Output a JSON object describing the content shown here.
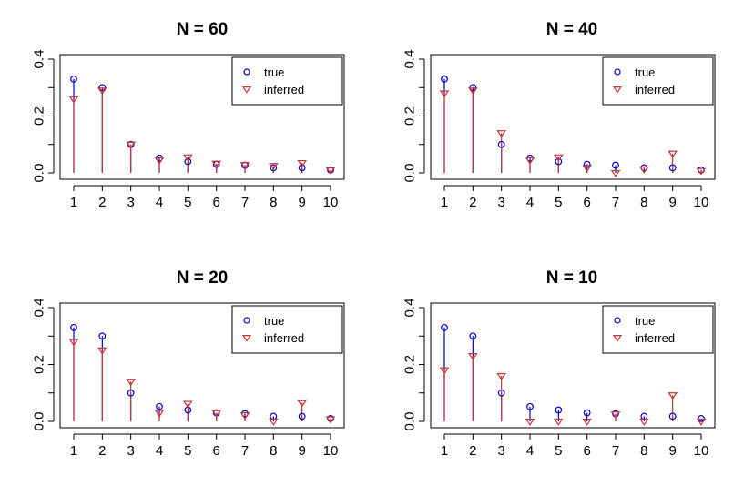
{
  "chart_data": [
    {
      "type": "scatter",
      "title": "N = 60",
      "x": [
        1,
        2,
        3,
        4,
        5,
        6,
        7,
        8,
        9,
        10
      ],
      "xticks": [
        "1",
        "2",
        "3",
        "4",
        "5",
        "6",
        "7",
        "8",
        "9",
        "10"
      ],
      "yticks": [
        "0.0",
        "0.2",
        "0.4"
      ],
      "ylim": [
        0,
        0.4
      ],
      "series": [
        {
          "name": "true",
          "marker": "circle",
          "color": "#0000cc",
          "drop_lines": true,
          "values": [
            0.33,
            0.3,
            0.1,
            0.052,
            0.04,
            0.03,
            0.027,
            0.018,
            0.018,
            0.01
          ]
        },
        {
          "name": "inferred",
          "marker": "triangle-down",
          "color": "#cc3333",
          "drop_lines": true,
          "values": [
            0.26,
            0.29,
            0.1,
            0.045,
            0.055,
            0.033,
            0.028,
            0.025,
            0.035,
            0.01
          ]
        }
      ],
      "legend": {
        "position": "top-right",
        "entries": [
          "true",
          "inferred"
        ]
      }
    },
    {
      "type": "scatter",
      "title": "N = 40",
      "x": [
        1,
        2,
        3,
        4,
        5,
        6,
        7,
        8,
        9,
        10
      ],
      "xticks": [
        "1",
        "2",
        "3",
        "4",
        "5",
        "6",
        "7",
        "8",
        "9",
        "10"
      ],
      "yticks": [
        "0.0",
        "0.2",
        "0.4"
      ],
      "ylim": [
        0,
        0.4
      ],
      "series": [
        {
          "name": "true",
          "marker": "circle",
          "color": "#0000cc",
          "drop_lines": true,
          "values": [
            0.33,
            0.3,
            0.1,
            0.052,
            0.04,
            0.03,
            0.027,
            0.018,
            0.018,
            0.01
          ]
        },
        {
          "name": "inferred",
          "marker": "triangle-down",
          "color": "#cc3333",
          "drop_lines": true,
          "values": [
            0.28,
            0.29,
            0.14,
            0.045,
            0.055,
            0.018,
            0.0,
            0.013,
            0.068,
            0.007
          ]
        }
      ],
      "legend": {
        "position": "top-right",
        "entries": [
          "true",
          "inferred"
        ]
      }
    },
    {
      "type": "scatter",
      "title": "N = 20",
      "x": [
        1,
        2,
        3,
        4,
        5,
        6,
        7,
        8,
        9,
        10
      ],
      "xticks": [
        "1",
        "2",
        "3",
        "4",
        "5",
        "6",
        "7",
        "8",
        "9",
        "10"
      ],
      "yticks": [
        "0.0",
        "0.2",
        "0.4"
      ],
      "ylim": [
        0,
        0.4
      ],
      "series": [
        {
          "name": "true",
          "marker": "circle",
          "color": "#0000cc",
          "drop_lines": true,
          "values": [
            0.33,
            0.3,
            0.1,
            0.052,
            0.04,
            0.03,
            0.027,
            0.018,
            0.018,
            0.01
          ]
        },
        {
          "name": "inferred",
          "marker": "triangle-down",
          "color": "#cc3333",
          "drop_lines": true,
          "values": [
            0.28,
            0.25,
            0.14,
            0.03,
            0.062,
            0.03,
            0.022,
            0.0,
            0.065,
            0.008
          ]
        }
      ],
      "legend": {
        "position": "top-right",
        "entries": [
          "true",
          "inferred"
        ]
      }
    },
    {
      "type": "scatter",
      "title": "N = 10",
      "x": [
        1,
        2,
        3,
        4,
        5,
        6,
        7,
        8,
        9,
        10
      ],
      "xticks": [
        "1",
        "2",
        "3",
        "4",
        "5",
        "6",
        "7",
        "8",
        "9",
        "10"
      ],
      "yticks": [
        "0.0",
        "0.2",
        "0.4"
      ],
      "ylim": [
        0,
        0.4
      ],
      "series": [
        {
          "name": "true",
          "marker": "circle",
          "color": "#0000cc",
          "drop_lines": true,
          "values": [
            0.33,
            0.3,
            0.1,
            0.052,
            0.04,
            0.03,
            0.027,
            0.018,
            0.018,
            0.01
          ]
        },
        {
          "name": "inferred",
          "marker": "triangle-down",
          "color": "#cc3333",
          "drop_lines": true,
          "values": [
            0.18,
            0.23,
            0.16,
            0.0,
            0.0,
            0.0,
            0.025,
            0.0,
            0.092,
            0.0
          ]
        }
      ],
      "legend": {
        "position": "top-right",
        "entries": [
          "true",
          "inferred"
        ]
      }
    }
  ]
}
